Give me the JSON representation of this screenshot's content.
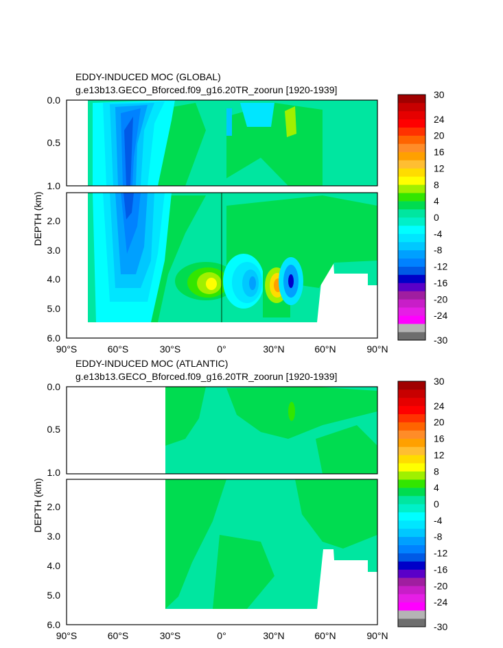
{
  "palette": {
    "bins": [
      {
        "lo": -30,
        "hi": -28,
        "color": "#6e6e6e"
      },
      {
        "lo": -28,
        "hi": -26,
        "color": "#b4b4b4"
      },
      {
        "lo": -26,
        "hi": -24,
        "color": "#ff00ff"
      },
      {
        "lo": -24,
        "hi": -22,
        "color": "#e61ee6"
      },
      {
        "lo": -22,
        "hi": -20,
        "color": "#c81ec8"
      },
      {
        "lo": -20,
        "hi": -18,
        "color": "#a01ea0"
      },
      {
        "lo": -18,
        "hi": -16,
        "color": "#5a00c8"
      },
      {
        "lo": -16,
        "hi": -14,
        "color": "#0000c8"
      },
      {
        "lo": -14,
        "hi": -12,
        "color": "#005ae6"
      },
      {
        "lo": -12,
        "hi": -10,
        "color": "#0082ff"
      },
      {
        "lo": -10,
        "hi": -8,
        "color": "#00a0ff"
      },
      {
        "lo": -8,
        "hi": -6,
        "color": "#00c8ff"
      },
      {
        "lo": -6,
        "hi": -4,
        "color": "#00e6ff"
      },
      {
        "lo": -4,
        "hi": -2,
        "color": "#00ffff"
      },
      {
        "lo": -2,
        "hi": 0,
        "color": "#00f0c8"
      },
      {
        "lo": 0,
        "hi": 2,
        "color": "#00e6a0"
      },
      {
        "lo": 2,
        "hi": 4,
        "color": "#00dc50"
      },
      {
        "lo": 4,
        "hi": 6,
        "color": "#32e600"
      },
      {
        "lo": 6,
        "hi": 8,
        "color": "#a0f000"
      },
      {
        "lo": 8,
        "hi": 10,
        "color": "#ffff00"
      },
      {
        "lo": 10,
        "hi": 12,
        "color": "#ffdc00"
      },
      {
        "lo": 12,
        "hi": 14,
        "color": "#ffbe32"
      },
      {
        "lo": 14,
        "hi": 16,
        "color": "#ffa000"
      },
      {
        "lo": 16,
        "hi": 18,
        "color": "#ff8c28"
      },
      {
        "lo": 18,
        "hi": 20,
        "color": "#ff6400"
      },
      {
        "lo": 20,
        "hi": 22,
        "color": "#ff3200"
      },
      {
        "lo": 22,
        "hi": 24,
        "color": "#ff0000"
      },
      {
        "lo": 24,
        "hi": 26,
        "color": "#e60000"
      },
      {
        "lo": 26,
        "hi": 28,
        "color": "#c80000"
      },
      {
        "lo": 28,
        "hi": 30,
        "color": "#a00000"
      }
    ],
    "ticks": [
      "30",
      "24",
      "20",
      "16",
      "12",
      "8",
      "4",
      "0",
      "-4",
      "-8",
      "-12",
      "-16",
      "-20",
      "-24",
      "-30"
    ]
  },
  "chart_data": [
    {
      "type": "heatmap",
      "id": "global",
      "title": "EDDY-INDUCED MOC (GLOBAL)",
      "subtitle": "g.e13b13.GECO_Bforced.f09_g16.20TR_zoorun [1920-1939]",
      "xlabel": "",
      "ylabel": "DEPTH (km)",
      "xlim": [
        -90,
        90
      ],
      "x_ticks": [
        "90°S",
        "60°S",
        "30°S",
        "0°",
        "30°N",
        "60°N",
        "90°N"
      ],
      "x_tick_values": [
        -90,
        -60,
        -30,
        0,
        30,
        60,
        90
      ],
      "y_upper": {
        "range": [
          0,
          1.0
        ],
        "tick_values": [
          0.0,
          0.5,
          1.0
        ],
        "tick_labels": [
          "0.0",
          "0.5",
          "1.0"
        ]
      },
      "y_lower": {
        "range": [
          1.0,
          6.0
        ],
        "tick_values": [
          2.0,
          3.0,
          4.0,
          5.0,
          6.0
        ],
        "tick_labels": [
          "2.0",
          "3.0",
          "4.0",
          "5.0",
          "6.0"
        ]
      },
      "colorbar": {
        "min": -30,
        "max": 30,
        "units": ""
      },
      "bottom_profile": [
        [
          -76,
          5.5
        ],
        [
          -30,
          5.5
        ],
        [
          0,
          5.5
        ],
        [
          30,
          5.5
        ],
        [
          55,
          5.5
        ],
        [
          57,
          3.0
        ],
        [
          62,
          3.0
        ],
        [
          66,
          3.8
        ],
        [
          78,
          3.8
        ],
        [
          80,
          4.2
        ],
        [
          90,
          4.2
        ]
      ],
      "features": [
        {
          "name": "southern-cell",
          "lat": -55,
          "depth": 1.5,
          "value": -12
        },
        {
          "name": "equatorial-warm",
          "lat": -3,
          "depth": 4.3,
          "value": 8
        },
        {
          "name": "equatorial-cold",
          "lat": 12,
          "depth": 4.2,
          "value": -12
        },
        {
          "name": "north-warm",
          "lat": 30,
          "depth": 4.3,
          "value": 12
        },
        {
          "name": "north-cold",
          "lat": 38,
          "depth": 4.2,
          "value": -14
        }
      ]
    },
    {
      "type": "heatmap",
      "id": "atlantic",
      "title": "EDDY-INDUCED MOC (ATLANTIC)",
      "subtitle": "g.e13b13.GECO_Bforced.f09_g16.20TR_zoorun [1920-1939]",
      "xlabel": "",
      "ylabel": "DEPTH (km)",
      "xlim": [
        -90,
        90
      ],
      "x_ticks": [
        "90°S",
        "60°S",
        "30°S",
        "0°",
        "30°N",
        "60°N",
        "90°N"
      ],
      "x_tick_values": [
        -90,
        -60,
        -30,
        0,
        30,
        60,
        90
      ],
      "y_upper": {
        "range": [
          0,
          1.0
        ],
        "tick_values": [
          0.0,
          0.5,
          1.0
        ],
        "tick_labels": [
          "0.0",
          "0.5",
          "1.0"
        ]
      },
      "y_lower": {
        "range": [
          1.0,
          6.0
        ],
        "tick_values": [
          2.0,
          3.0,
          4.0,
          5.0,
          6.0
        ],
        "tick_labels": [
          "2.0",
          "3.0",
          "4.0",
          "5.0",
          "6.0"
        ]
      },
      "colorbar": {
        "min": -30,
        "max": 30,
        "units": ""
      },
      "bottom_profile": [
        [
          -34,
          5.5
        ],
        [
          55,
          5.5
        ],
        [
          57,
          3.0
        ],
        [
          62,
          3.0
        ],
        [
          66,
          3.8
        ],
        [
          78,
          3.8
        ],
        [
          80,
          4.2
        ],
        [
          90,
          4.2
        ]
      ],
      "features": [
        {
          "name": "atlantic-weak",
          "lat": 0,
          "depth": 2.5,
          "value": 1
        }
      ]
    }
  ]
}
